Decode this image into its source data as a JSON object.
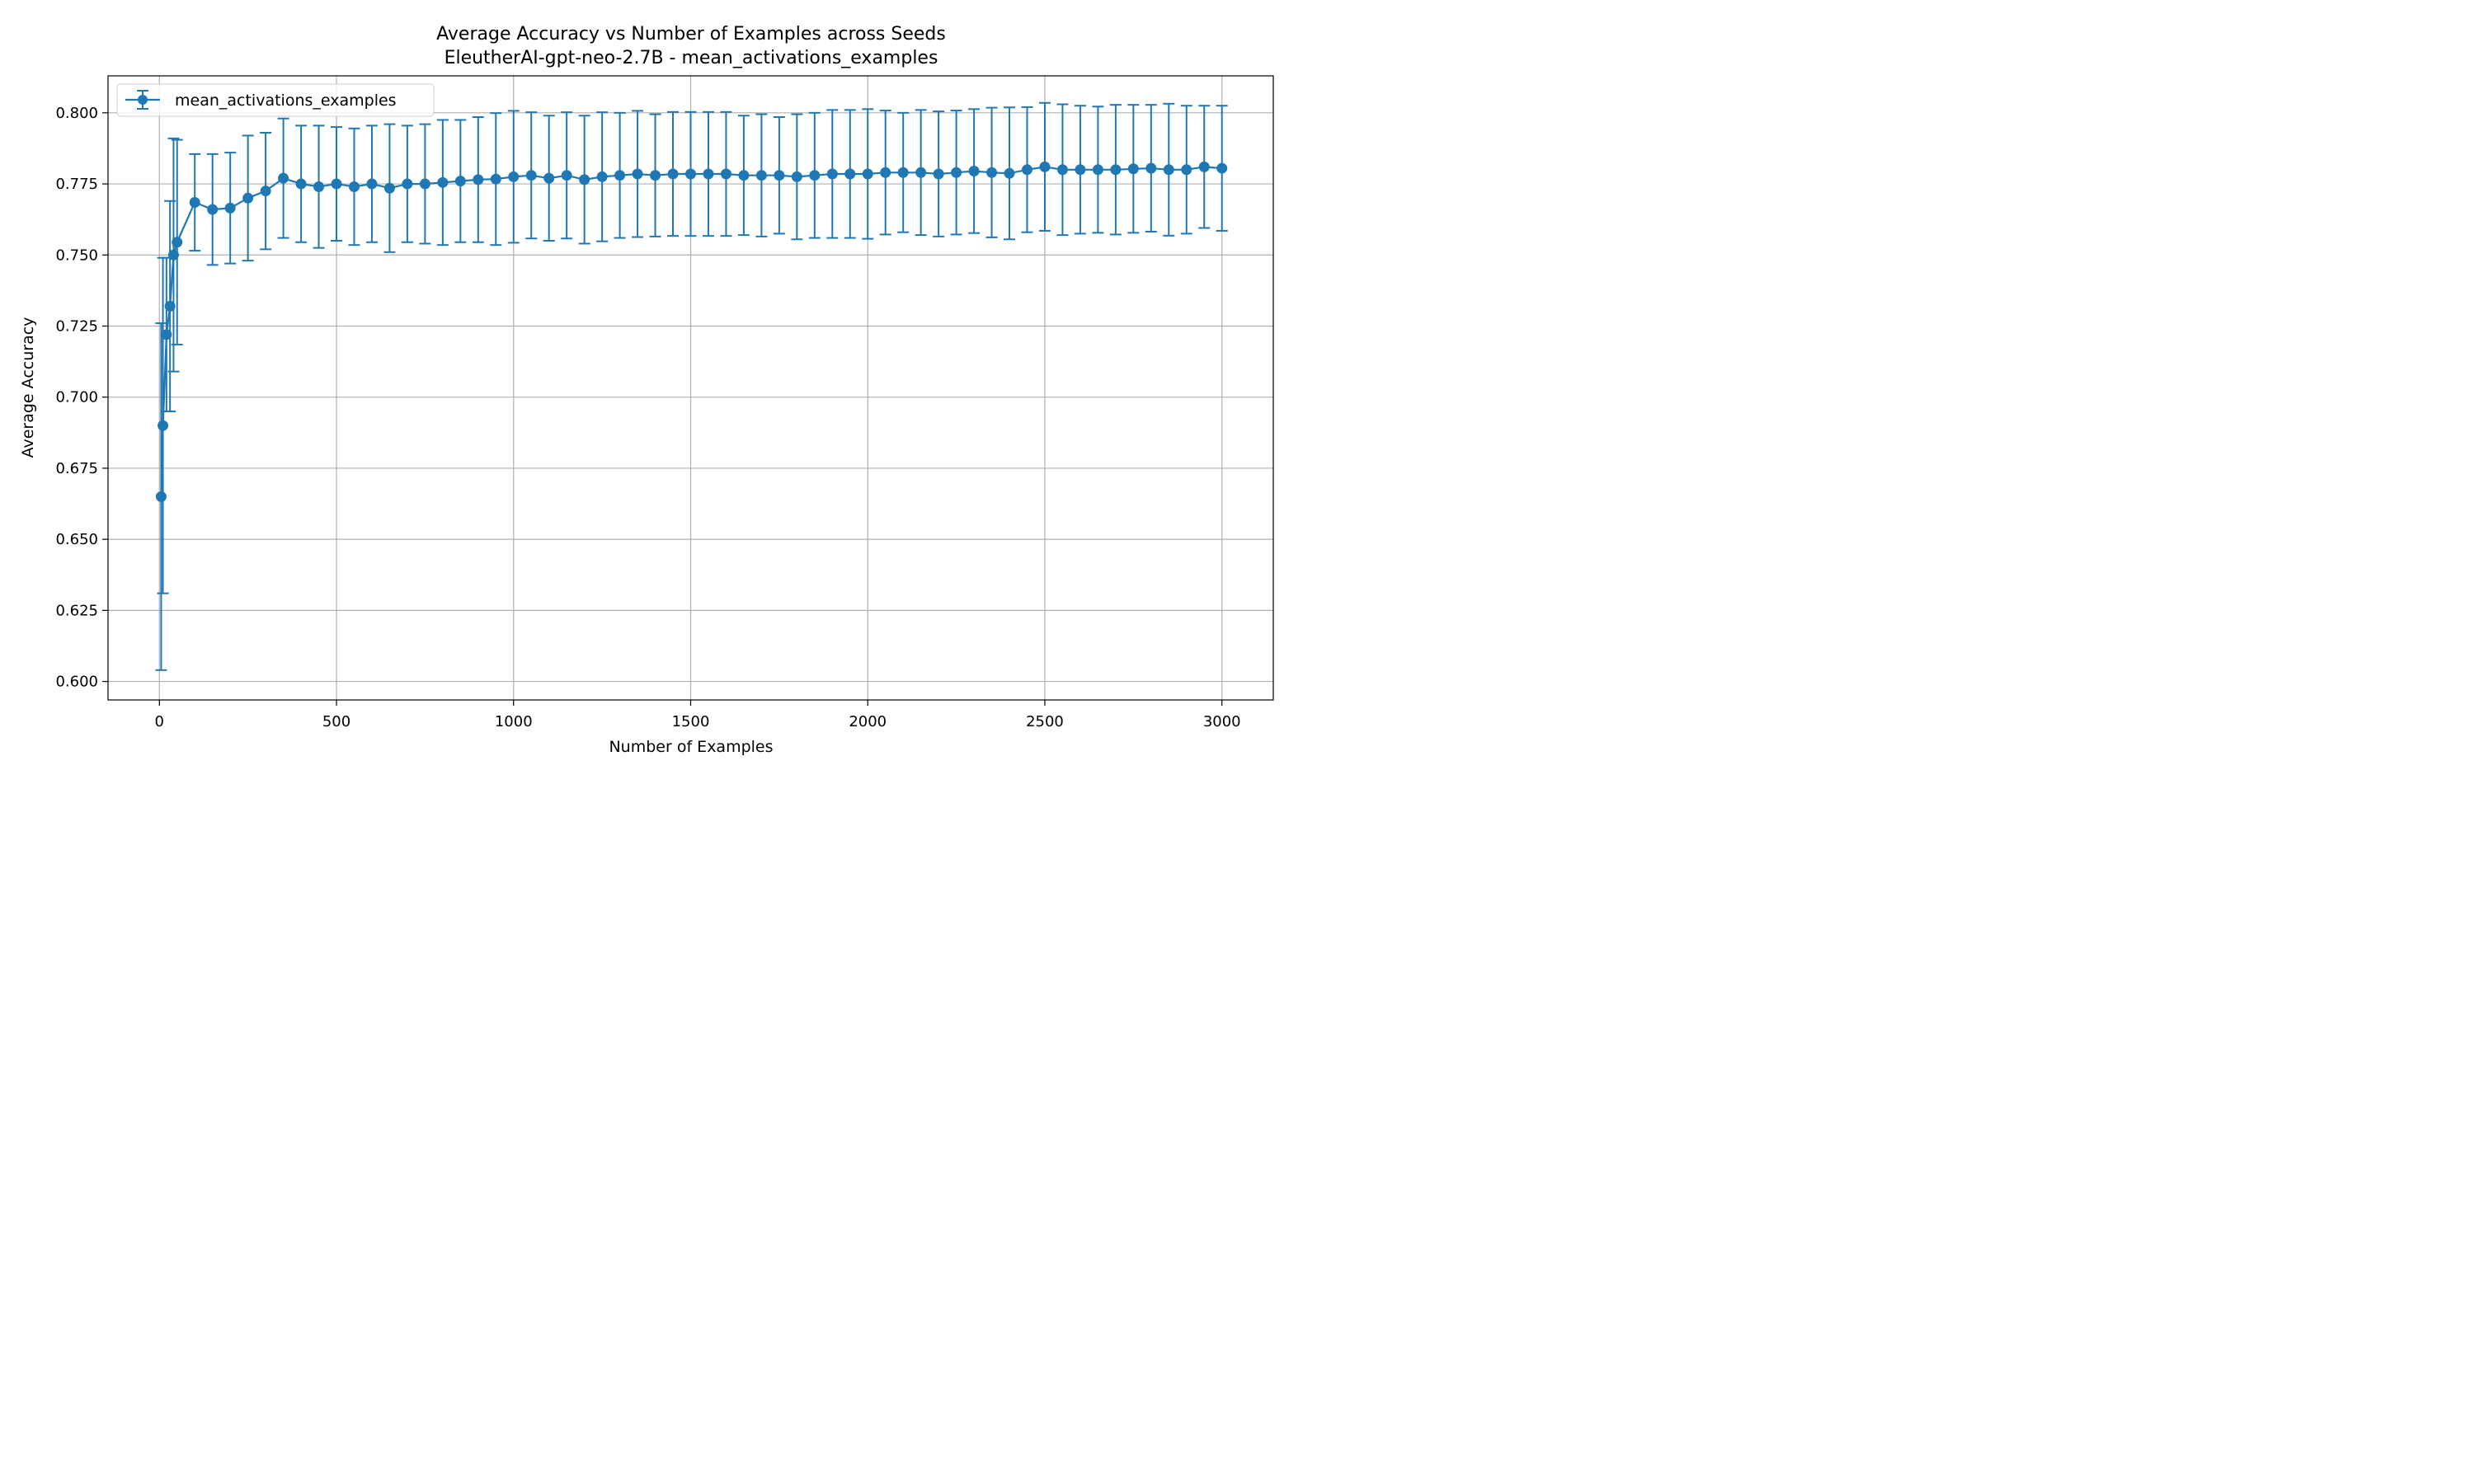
{
  "chart_data": {
    "type": "line",
    "title": "Average Accuracy vs Number of Examples across Seeds",
    "subtitle": "EleutherAI-gpt-neo-2.7B - mean_activations_examples",
    "xlabel": "Number of Examples",
    "ylabel": "Average Accuracy",
    "xlim": [
      -145,
      3145
    ],
    "ylim": [
      0.5935,
      0.813
    ],
    "xticks": [
      0,
      500,
      1000,
      1500,
      2000,
      2500,
      3000
    ],
    "xtick_labels": [
      "0",
      "500",
      "1000",
      "1500",
      "2000",
      "2500",
      "3000"
    ],
    "yticks": [
      0.6,
      0.625,
      0.65,
      0.675,
      0.7,
      0.725,
      0.75,
      0.775,
      0.8
    ],
    "ytick_labels": [
      "0.600",
      "0.625",
      "0.650",
      "0.675",
      "0.700",
      "0.725",
      "0.750",
      "0.775",
      "0.800"
    ],
    "grid": true,
    "legend": "top-left",
    "series": [
      {
        "name": "mean_activations_examples",
        "color": "#1f77b4",
        "x": [
          5,
          10,
          20,
          30,
          40,
          50,
          100,
          150,
          200,
          250,
          300,
          350,
          400,
          450,
          500,
          550,
          600,
          650,
          700,
          750,
          800,
          850,
          900,
          950,
          1000,
          1050,
          1100,
          1150,
          1200,
          1250,
          1300,
          1350,
          1400,
          1450,
          1500,
          1550,
          1600,
          1650,
          1700,
          1750,
          1800,
          1850,
          1900,
          1950,
          2000,
          2050,
          2100,
          2150,
          2200,
          2250,
          2300,
          2350,
          2400,
          2450,
          2500,
          2550,
          2600,
          2650,
          2700,
          2750,
          2800,
          2850,
          2900,
          2950,
          3000
        ],
        "y": [
          0.665,
          0.69,
          0.722,
          0.732,
          0.75,
          0.7545,
          0.7685,
          0.766,
          0.7665,
          0.77,
          0.7725,
          0.777,
          0.775,
          0.774,
          0.775,
          0.774,
          0.775,
          0.7735,
          0.775,
          0.775,
          0.7755,
          0.776,
          0.7765,
          0.7767,
          0.7775,
          0.778,
          0.777,
          0.778,
          0.7765,
          0.7775,
          0.778,
          0.7785,
          0.778,
          0.7785,
          0.7785,
          0.7785,
          0.7785,
          0.778,
          0.778,
          0.778,
          0.7775,
          0.778,
          0.7785,
          0.7785,
          0.7785,
          0.779,
          0.779,
          0.779,
          0.7785,
          0.779,
          0.7795,
          0.779,
          0.7787,
          0.78,
          0.781,
          0.78,
          0.78,
          0.78,
          0.78,
          0.7803,
          0.7805,
          0.78,
          0.78,
          0.781,
          0.7805
        ],
        "yerr": [
          0.061,
          0.059,
          0.027,
          0.037,
          0.041,
          0.036,
          0.017,
          0.0195,
          0.0195,
          0.022,
          0.0205,
          0.021,
          0.0205,
          0.0215,
          0.02,
          0.0205,
          0.0205,
          0.0225,
          0.0205,
          0.021,
          0.022,
          0.0215,
          0.022,
          0.0232,
          0.0232,
          0.0222,
          0.022,
          0.0222,
          0.0225,
          0.0227,
          0.022,
          0.0222,
          0.0215,
          0.0218,
          0.0218,
          0.0218,
          0.0218,
          0.021,
          0.0215,
          0.0205,
          0.022,
          0.022,
          0.0225,
          0.0225,
          0.0228,
          0.0218,
          0.021,
          0.022,
          0.022,
          0.0218,
          0.0218,
          0.0228,
          0.0232,
          0.022,
          0.0225,
          0.023,
          0.0225,
          0.0222,
          0.0228,
          0.0225,
          0.0223,
          0.0232,
          0.0225,
          0.0215,
          0.022
        ]
      }
    ]
  }
}
